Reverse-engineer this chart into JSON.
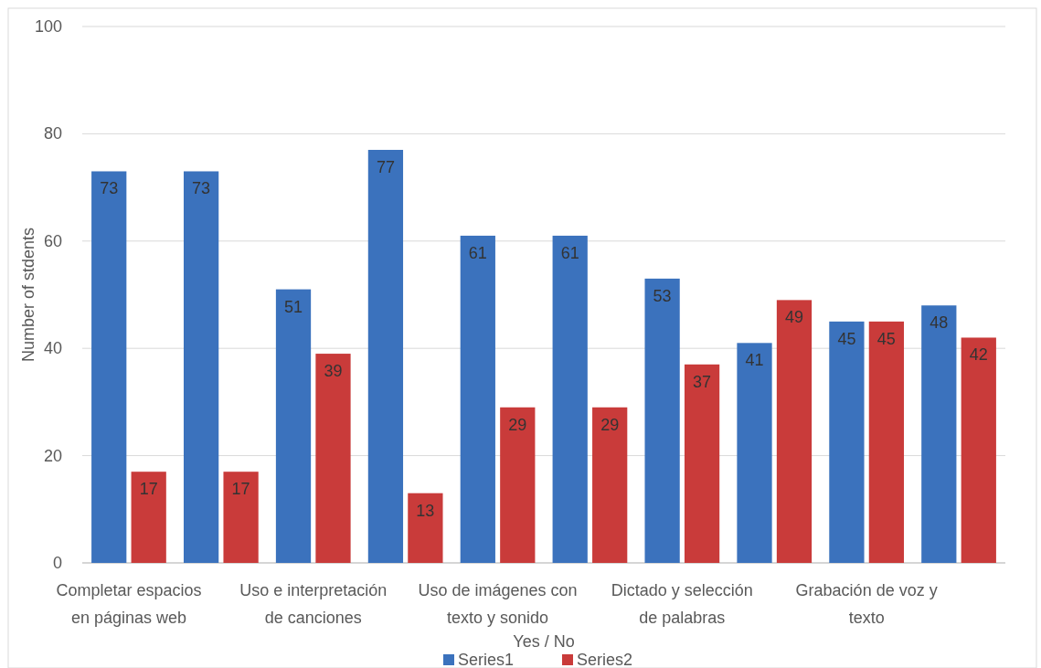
{
  "chart_data": {
    "type": "bar",
    "categories": [
      "Completar espacios en páginas web",
      null,
      "Uso e interpretación de canciones",
      null,
      "Uso de imágenes con texto y sonido",
      null,
      "Dictado y selección de palabras",
      null,
      "Grabación de voz y texto",
      null
    ],
    "series": [
      {
        "name": "Series1",
        "color": "#3b72bd",
        "values": [
          73,
          73,
          51,
          77,
          61,
          61,
          53,
          41,
          45,
          48
        ]
      },
      {
        "name": "Series2",
        "color": "#c93b3a",
        "values": [
          17,
          17,
          39,
          13,
          29,
          29,
          37,
          49,
          45,
          42
        ]
      }
    ],
    "ylabel": "Number of stdents",
    "xlabel": "Yes / No",
    "ylim": [
      0,
      100
    ],
    "yticks": [
      0,
      20,
      40,
      60,
      80,
      100
    ],
    "grid": "y",
    "legend": "bottom",
    "data_labels": true
  }
}
